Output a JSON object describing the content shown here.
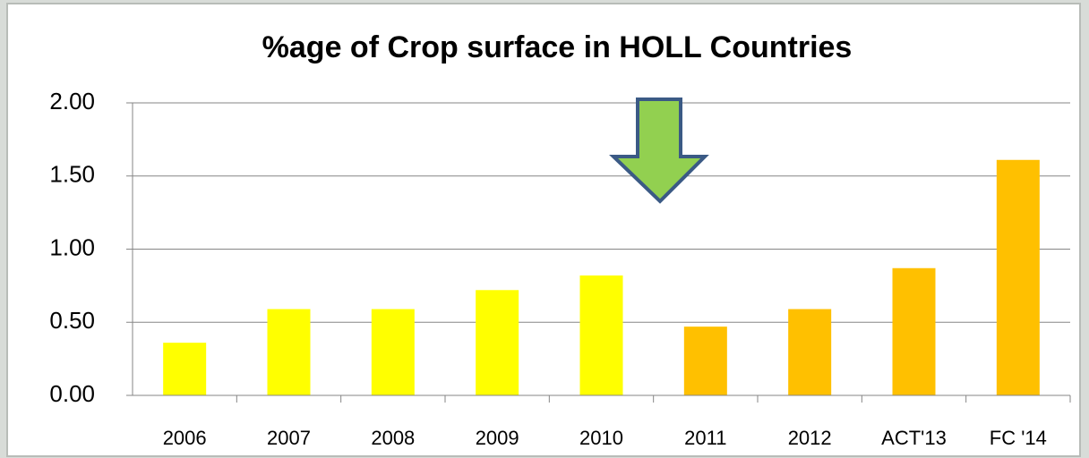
{
  "chart_data": {
    "type": "bar",
    "title": "%age of Crop surface in HOLL Countries",
    "categories": [
      "2006",
      "2007",
      "2008",
      "2009",
      "2010",
      "2011",
      "2012",
      "ACT'13",
      "FC '14"
    ],
    "values": [
      0.36,
      0.59,
      0.59,
      0.72,
      0.82,
      0.47,
      0.59,
      0.87,
      1.61
    ],
    "colors": [
      "#ffff00",
      "#ffff00",
      "#ffff00",
      "#ffff00",
      "#ffff00",
      "#ffc000",
      "#ffc000",
      "#ffc000",
      "#ffc000"
    ],
    "ylim": [
      0,
      2
    ],
    "yticks": [
      {
        "value": 0,
        "label": "0.00"
      },
      {
        "value": 0.5,
        "label": "0.50"
      },
      {
        "value": 1,
        "label": "1.00"
      },
      {
        "value": 1.5,
        "label": "1.50"
      },
      {
        "value": 2,
        "label": "2.00"
      }
    ],
    "grid": true
  }
}
